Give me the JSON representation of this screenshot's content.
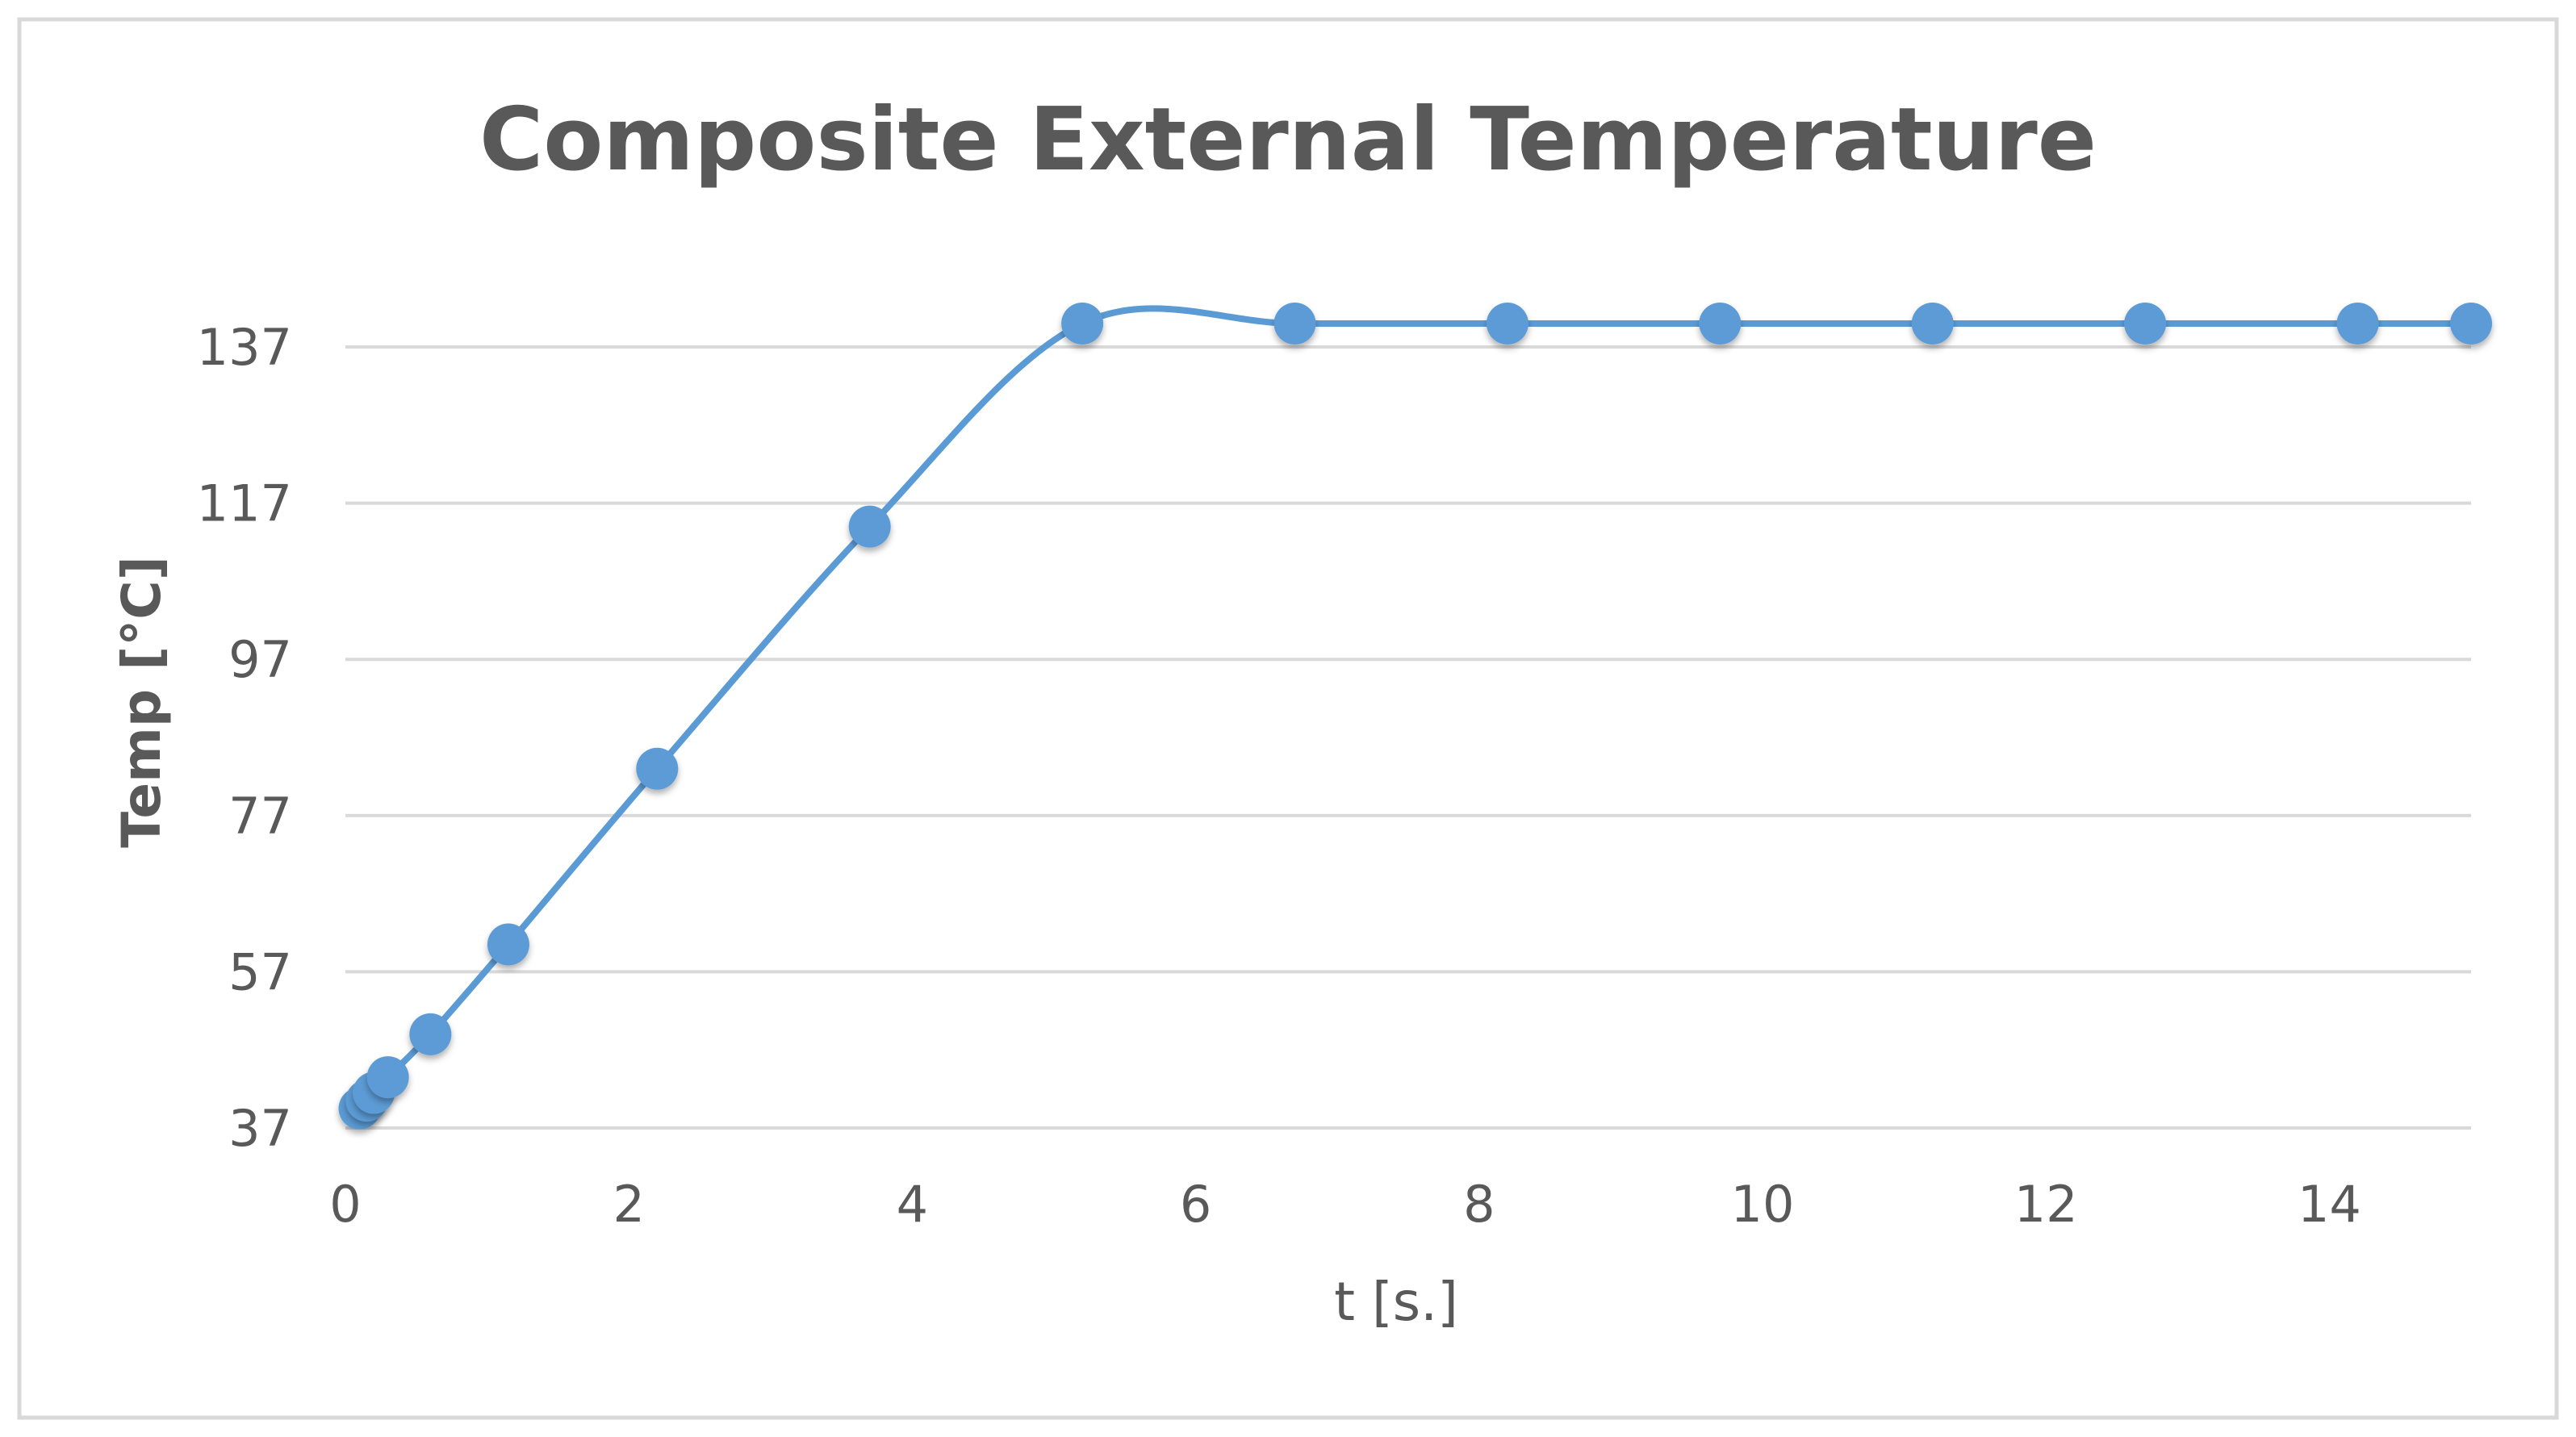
{
  "chart_data": {
    "type": "line",
    "title": "Composite External Temperature",
    "xlabel": "t [s.]",
    "ylabel": "Temp [°C]",
    "xlim": [
      0,
      15
    ],
    "ylim": [
      37,
      137
    ],
    "x_ticks": [
      0,
      2,
      4,
      6,
      8,
      10,
      12,
      14
    ],
    "y_ticks": [
      37,
      57,
      77,
      97,
      117,
      137
    ],
    "grid": "horizontal",
    "legend": "none",
    "smooth": true,
    "series_color": "#5b9bd5",
    "series": [
      {
        "x": [
          0.1,
          0.15,
          0.2,
          0.3,
          0.6,
          1.15,
          2.2,
          3.7,
          5.2,
          6.7,
          8.2,
          9.7,
          11.2,
          12.7,
          14.2,
          15.0
        ],
        "y": [
          39.5,
          40.5,
          41.5,
          43.5,
          49,
          60.5,
          83,
          114,
          140,
          140,
          140,
          140,
          140,
          140,
          140,
          140
        ]
      }
    ]
  }
}
